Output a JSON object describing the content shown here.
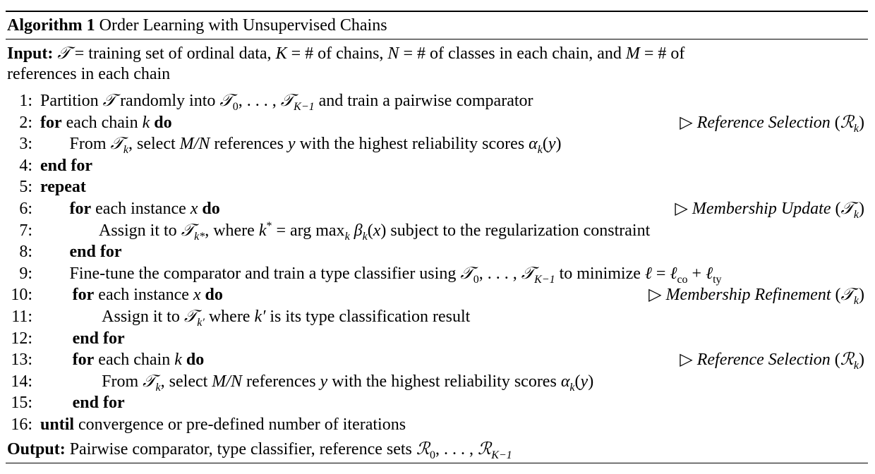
{
  "title": [
    {
      "t": "Algorithm 1",
      "b": 1
    },
    {
      "t": " Order Learning with Unsupervised Chains"
    }
  ],
  "input": [
    [
      {
        "t": "Input:",
        "b": 1
      },
      {
        "t": " "
      },
      {
        "t": "𝒯",
        "i": 1
      },
      {
        "t": " = training set of ordinal data, "
      },
      {
        "t": "K",
        "i": 1
      },
      {
        "t": " = # of chains, "
      },
      {
        "t": "N",
        "i": 1
      },
      {
        "t": " = # of classes in each chain, and "
      },
      {
        "t": "M",
        "i": 1
      },
      {
        "t": " = # of"
      }
    ],
    [
      {
        "t": "references in each chain"
      }
    ]
  ],
  "lines": [
    {
      "n": "1:",
      "indent": 0,
      "seg": [
        {
          "t": "Partition "
        },
        {
          "t": "𝒯",
          "i": 1
        },
        {
          "t": " randomly into "
        },
        {
          "t": "𝒯",
          "i": 1
        },
        {
          "t": "0",
          "sub": 1
        },
        {
          "t": ", . . . , "
        },
        {
          "t": "𝒯",
          "i": 1
        },
        {
          "t": "K−1",
          "sub": 1,
          "i": 1
        },
        {
          "t": " and train a pairwise comparator"
        }
      ]
    },
    {
      "n": "2:",
      "indent": 0,
      "seg": [
        {
          "t": "for",
          "b": 1
        },
        {
          "t": " each chain "
        },
        {
          "t": "k",
          "i": 1
        },
        {
          "t": " "
        },
        {
          "t": "do",
          "b": 1
        }
      ],
      "comment": [
        {
          "t": "▷ "
        },
        {
          "t": "Reference Selection",
          "i": 1
        },
        {
          "t": " ("
        },
        {
          "t": "ℛ",
          "i": 1
        },
        {
          "t": "k",
          "sub": 1,
          "i": 1
        },
        {
          "t": ")"
        }
      ]
    },
    {
      "n": "3:",
      "indent": 1,
      "seg": [
        {
          "t": "From "
        },
        {
          "t": "𝒯",
          "i": 1
        },
        {
          "t": "k",
          "sub": 1,
          "i": 1
        },
        {
          "t": ", select "
        },
        {
          "t": "M/N",
          "i": 1
        },
        {
          "t": " references "
        },
        {
          "t": "y",
          "i": 1
        },
        {
          "t": " with the highest reliability scores "
        },
        {
          "t": "α",
          "i": 1
        },
        {
          "t": "k",
          "sub": 1,
          "i": 1
        },
        {
          "t": "("
        },
        {
          "t": "y",
          "i": 1
        },
        {
          "t": ")"
        }
      ]
    },
    {
      "n": "4:",
      "indent": 0,
      "seg": [
        {
          "t": "end for",
          "b": 1
        }
      ]
    },
    {
      "n": "5:",
      "indent": 0,
      "seg": [
        {
          "t": "repeat",
          "b": 1
        }
      ]
    },
    {
      "n": "6:",
      "indent": 1,
      "seg": [
        {
          "t": "for",
          "b": 1
        },
        {
          "t": " each instance "
        },
        {
          "t": "x",
          "i": 1
        },
        {
          "t": " "
        },
        {
          "t": "do",
          "b": 1
        }
      ],
      "comment": [
        {
          "t": "▷ "
        },
        {
          "t": "Membership Update",
          "i": 1
        },
        {
          "t": " ("
        },
        {
          "t": "𝒯",
          "i": 1
        },
        {
          "t": "k",
          "sub": 1,
          "i": 1
        },
        {
          "t": ")"
        }
      ]
    },
    {
      "n": "7:",
      "indent": 2,
      "seg": [
        {
          "t": "Assign it to "
        },
        {
          "t": "𝒯",
          "i": 1
        },
        {
          "t": "k*",
          "sub": 1,
          "i": 1
        },
        {
          "t": ", where "
        },
        {
          "t": "k",
          "i": 1
        },
        {
          "t": "*",
          "sup": 1
        },
        {
          "t": " = arg max"
        },
        {
          "t": "k",
          "sub": 1,
          "i": 1
        },
        {
          "t": " "
        },
        {
          "t": "β",
          "i": 1
        },
        {
          "t": "k",
          "sub": 1,
          "i": 1
        },
        {
          "t": "("
        },
        {
          "t": "x",
          "i": 1
        },
        {
          "t": ") subject to the regularization constraint"
        }
      ]
    },
    {
      "n": "8:",
      "indent": 1,
      "seg": [
        {
          "t": "end for",
          "b": 1
        }
      ]
    },
    {
      "n": "9:",
      "indent": 1,
      "seg": [
        {
          "t": "Fine-tune the comparator and train a type classifier using "
        },
        {
          "t": "𝒯",
          "i": 1
        },
        {
          "t": "0",
          "sub": 1
        },
        {
          "t": ", . . . , "
        },
        {
          "t": "𝒯",
          "i": 1
        },
        {
          "t": "K−1",
          "sub": 1,
          "i": 1
        },
        {
          "t": " to minimize "
        },
        {
          "t": "ℓ",
          "i": 1
        },
        {
          "t": " = "
        },
        {
          "t": "ℓ",
          "i": 1
        },
        {
          "t": "co",
          "sub": 1
        },
        {
          "t": " + "
        },
        {
          "t": "ℓ",
          "i": 1
        },
        {
          "t": "ty",
          "sub": 1
        }
      ]
    },
    {
      "n": "10:",
      "indent": 1.1,
      "seg": [
        {
          "t": "for",
          "b": 1
        },
        {
          "t": " each instance "
        },
        {
          "t": "x",
          "i": 1
        },
        {
          "t": " "
        },
        {
          "t": "do",
          "b": 1
        }
      ],
      "comment": [
        {
          "t": "▷ "
        },
        {
          "t": "Membership Refinement",
          "i": 1
        },
        {
          "t": " ("
        },
        {
          "t": "𝒯",
          "i": 1
        },
        {
          "t": "k",
          "sub": 1,
          "i": 1
        },
        {
          "t": ")"
        }
      ]
    },
    {
      "n": "11:",
      "indent": 2.1,
      "seg": [
        {
          "t": "Assign it to "
        },
        {
          "t": "𝒯",
          "i": 1
        },
        {
          "t": "k′",
          "sub": 1,
          "i": 1
        },
        {
          "t": " where "
        },
        {
          "t": "k′",
          "i": 1
        },
        {
          "t": " is its type classification result"
        }
      ]
    },
    {
      "n": "12:",
      "indent": 1.1,
      "seg": [
        {
          "t": "end for",
          "b": 1
        }
      ]
    },
    {
      "n": "13:",
      "indent": 1.1,
      "seg": [
        {
          "t": "for",
          "b": 1
        },
        {
          "t": " each chain "
        },
        {
          "t": "k",
          "i": 1
        },
        {
          "t": " "
        },
        {
          "t": "do",
          "b": 1
        }
      ],
      "comment": [
        {
          "t": "▷ "
        },
        {
          "t": "Reference Selection",
          "i": 1
        },
        {
          "t": " ("
        },
        {
          "t": "ℛ",
          "i": 1
        },
        {
          "t": "k",
          "sub": 1,
          "i": 1
        },
        {
          "t": ")"
        }
      ]
    },
    {
      "n": "14:",
      "indent": 2.1,
      "seg": [
        {
          "t": "From "
        },
        {
          "t": "𝒯",
          "i": 1
        },
        {
          "t": "k",
          "sub": 1,
          "i": 1
        },
        {
          "t": ", select "
        },
        {
          "t": "M/N",
          "i": 1
        },
        {
          "t": " references "
        },
        {
          "t": "y",
          "i": 1
        },
        {
          "t": " with the highest reliability scores "
        },
        {
          "t": "α",
          "i": 1
        },
        {
          "t": "k",
          "sub": 1,
          "i": 1
        },
        {
          "t": "("
        },
        {
          "t": "y",
          "i": 1
        },
        {
          "t": ")"
        }
      ]
    },
    {
      "n": "15:",
      "indent": 1.1,
      "seg": [
        {
          "t": "end for",
          "b": 1
        }
      ]
    },
    {
      "n": "16:",
      "indent": 0,
      "seg": [
        {
          "t": "until",
          "b": 1
        },
        {
          "t": " convergence or pre-defined number of iterations"
        }
      ]
    }
  ],
  "output": [
    {
      "t": "Output:",
      "b": 1
    },
    {
      "t": " Pairwise comparator, type classifier, reference sets "
    },
    {
      "t": "ℛ",
      "i": 1
    },
    {
      "t": "0",
      "sub": 1
    },
    {
      "t": ", . . . , "
    },
    {
      "t": "ℛ",
      "i": 1
    },
    {
      "t": "K−1",
      "sub": 1,
      "i": 1
    }
  ]
}
